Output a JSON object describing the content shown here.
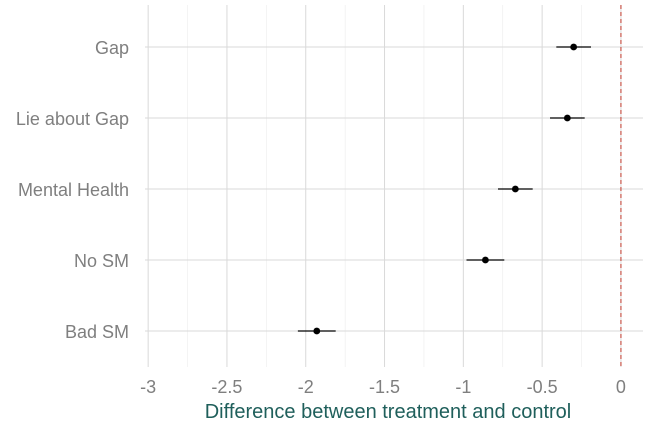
{
  "chart_data": {
    "type": "scatter",
    "title": "",
    "xlabel": "Difference between treatment and control",
    "ylabel": "",
    "xlim": [
      -3.02,
      0.14
    ],
    "x_ticks": [
      -3,
      -2.5,
      -2,
      -1.5,
      -1,
      -0.5,
      0
    ],
    "x_tick_labels": [
      "-3",
      "-2.5",
      "-2",
      "-1.5",
      "-1",
      "-0.5",
      "0"
    ],
    "categories": [
      "Gap",
      "Lie about Gap",
      "Mental Health",
      "No SM",
      "Bad SM"
    ],
    "series": [
      {
        "estimate": [
          -0.3,
          -0.34,
          -0.67,
          -0.86,
          -1.93
        ],
        "ci_low": [
          -0.41,
          -0.45,
          -0.78,
          -0.98,
          -2.05
        ],
        "ci_high": [
          -0.19,
          -0.23,
          -0.56,
          -0.74,
          -1.81
        ]
      }
    ],
    "reference_line": {
      "x": 0,
      "style": "dashed",
      "color": "#c0392b"
    },
    "grid": true,
    "legend": "none",
    "colors": {
      "point": "#000000",
      "grid": "#d9d9d9",
      "tick_text": "#7f7f7f",
      "axis_title": "#1f5f5b"
    }
  }
}
